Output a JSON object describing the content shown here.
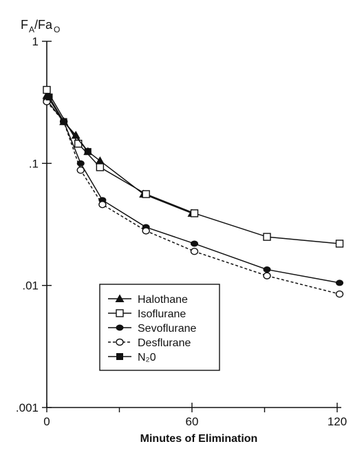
{
  "chart_data": {
    "type": "line",
    "title": "",
    "xlabel": "Minutes of Elimination",
    "ylabel": {
      "main": "F",
      "sub1": "A",
      "slash": "/Fa",
      "sub2": "O"
    },
    "yscale": "log",
    "xlim": [
      0,
      120
    ],
    "ylim": [
      0.001,
      1
    ],
    "xticks": [
      0,
      60,
      120
    ],
    "xtick_labels": [
      "0",
      "60",
      "120"
    ],
    "xminor_ticks": [
      30,
      90
    ],
    "yticks": [
      1,
      0.1,
      0.01,
      0.001
    ],
    "ytick_labels": [
      "1",
      ".1",
      ".01",
      ".001"
    ],
    "grid": false,
    "legend_position": "lower-left",
    "series": [
      {
        "name": "Halothane",
        "marker": "triangle",
        "line": "solid",
        "x": [
          0,
          7,
          12,
          17,
          22,
          40,
          60
        ],
        "y": [
          0.36,
          0.22,
          0.17,
          0.125,
          0.105,
          0.056,
          0.039
        ]
      },
      {
        "name": "Isoflurane",
        "marker": "open-square",
        "line": "solid",
        "x": [
          0,
          13,
          22,
          41,
          61,
          91,
          121
        ],
        "y": [
          0.4,
          0.145,
          0.093,
          0.056,
          0.039,
          0.025,
          0.022
        ]
      },
      {
        "name": "Sevoflurane",
        "marker": "filled-circle",
        "line": "solid",
        "x": [
          0,
          7,
          14,
          23,
          41,
          61,
          91,
          121
        ],
        "y": [
          0.33,
          0.22,
          0.1,
          0.05,
          0.03,
          0.022,
          0.0135,
          0.0105
        ]
      },
      {
        "name": "Desflurane",
        "marker": "open-circle",
        "line": "dashed",
        "x": [
          0,
          7,
          14,
          23,
          41,
          61,
          91,
          121
        ],
        "y": [
          0.32,
          0.22,
          0.088,
          0.046,
          0.028,
          0.019,
          0.012,
          0.0085
        ]
      },
      {
        "name": "N₂0",
        "marker": "filled-square",
        "line": "solid",
        "x": [
          1,
          7,
          17
        ],
        "y": [
          0.35,
          0.22,
          0.125
        ]
      }
    ]
  }
}
